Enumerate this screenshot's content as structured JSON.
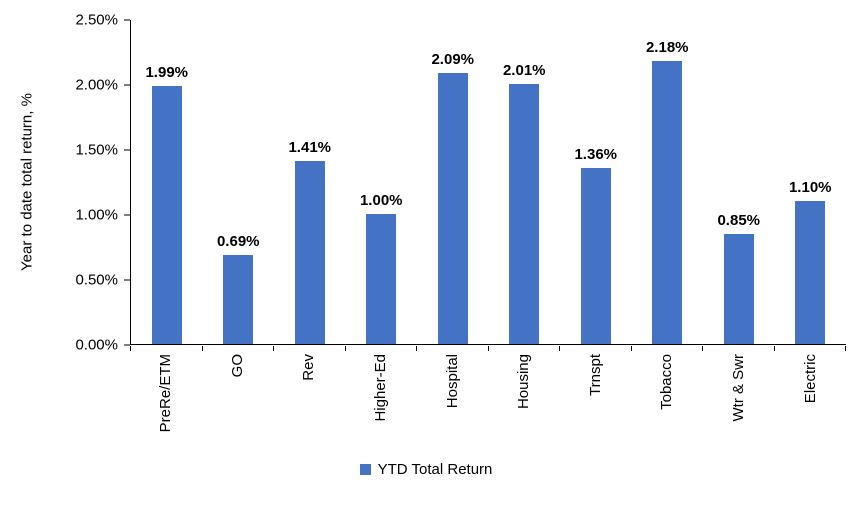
{
  "chart_data": {
    "type": "bar",
    "title": "",
    "xlabel": "",
    "ylabel": "Year to date total return, %",
    "categories": [
      "PreRe/ETM",
      "GO",
      "Rev",
      "Higher-Ed",
      "Hospital",
      "Housing",
      "Trnspt",
      "Tobacco",
      "Wtr & Swr",
      "Electric"
    ],
    "values": [
      1.99,
      0.69,
      1.41,
      1.0,
      2.09,
      2.01,
      1.36,
      2.18,
      0.85,
      1.1
    ],
    "labels": [
      "1.99%",
      "0.69%",
      "1.41%",
      "1.00%",
      "2.09%",
      "2.01%",
      "1.36%",
      "2.18%",
      "0.85%",
      "1.10%"
    ],
    "ylim": [
      0,
      2.5
    ],
    "yticks": [
      "0.00%",
      "0.50%",
      "1.00%",
      "1.50%",
      "2.00%",
      "2.50%"
    ],
    "ytick_values": [
      0,
      0.5,
      1.0,
      1.5,
      2.0,
      2.5
    ],
    "grid": false,
    "legend_position": "bottom",
    "bar_color": "#4472C4",
    "legend": [
      {
        "label": "YTD Total Return",
        "color": "#4472C4"
      }
    ]
  }
}
